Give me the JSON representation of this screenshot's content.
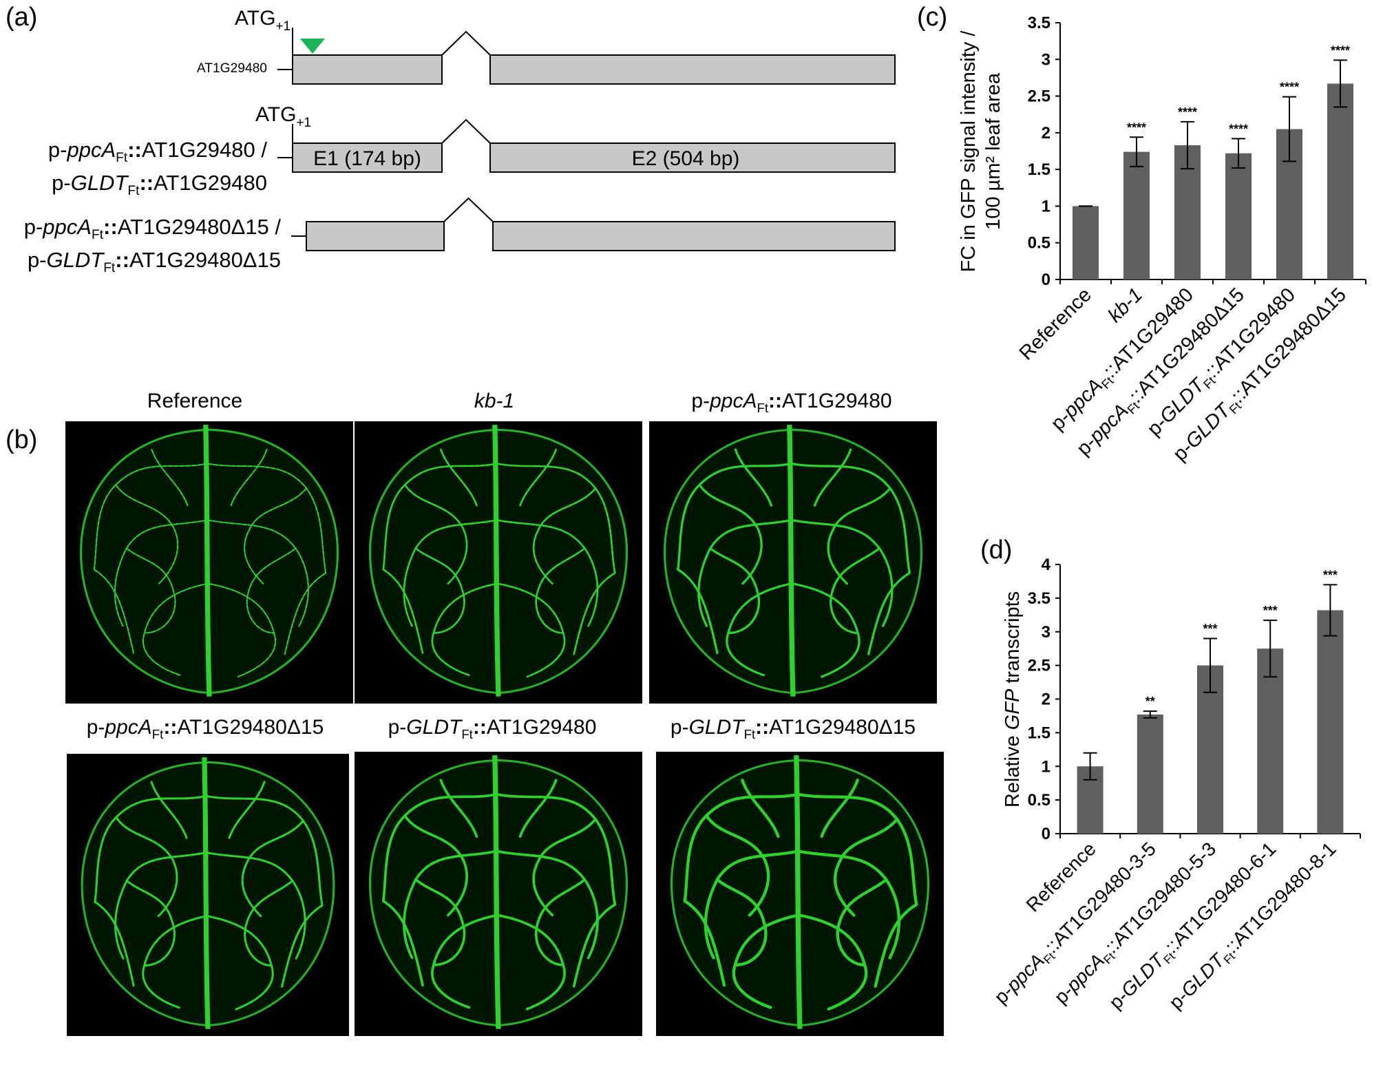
{
  "panel_a": {
    "letter": "(a)",
    "atg_main": "ATG",
    "atg_sub": "+1",
    "rows": [
      {
        "label_lines": [
          [
            "",
            "",
            "AT1G29480",
            "",
            ""
          ]
        ],
        "exon1": "",
        "exon2": "",
        "show_atg": true,
        "show_triangle": true
      },
      {
        "label_lines": [
          [
            "p-",
            "ppcA",
            "Ft",
            "::",
            "AT1G29480 /"
          ],
          [
            "p-",
            "GLDT",
            "Ft",
            "::",
            "AT1G29480"
          ]
        ],
        "exon1": "E1 (174 bp)",
        "exon2": "E2 (504 bp)",
        "show_atg": true,
        "show_triangle": false
      },
      {
        "label_lines": [
          [
            "p-",
            "ppcA",
            "Ft",
            "::",
            "AT1G29480Δ15 /"
          ],
          [
            "p-",
            "GLDT",
            "Ft",
            "::",
            "AT1G29480Δ15"
          ]
        ],
        "exon1": "",
        "exon2": "",
        "show_atg": false,
        "show_triangle": false
      }
    ]
  },
  "panel_b": {
    "letter": "(b)",
    "images": [
      {
        "prefix": "",
        "italic": "",
        "sub": "",
        "sep": "",
        "rest": "Reference"
      },
      {
        "prefix": "",
        "italic": "kb-1",
        "sub": "",
        "sep": "",
        "rest": ""
      },
      {
        "prefix": "p-",
        "italic": "ppcA",
        "sub": "Ft",
        "sep": "::",
        "rest": "AT1G29480"
      },
      {
        "prefix": "p-",
        "italic": "ppcA",
        "sub": "Ft",
        "sep": "::",
        "rest": "AT1G29480Δ15"
      },
      {
        "prefix": "p-",
        "italic": "GLDT",
        "sub": "Ft",
        "sep": "::",
        "rest": "AT1G29480"
      },
      {
        "prefix": "p-",
        "italic": "GLDT",
        "sub": "Ft",
        "sep": "::",
        "rest": "AT1G29480Δ15"
      }
    ]
  },
  "panel_c": {
    "letter": "(c)"
  },
  "panel_d": {
    "letter": "(d)"
  },
  "colors": {
    "bar": "#5f5f5f",
    "leaf_vein": "#2fd12f",
    "triangle": "#19b35a",
    "exon": "#c8c8c8"
  },
  "chart_data": [
    {
      "type": "bar",
      "ylabel_lines": [
        "FC in GFP signal intensity /",
        "100 µm² leaf area"
      ],
      "ylim": [
        0,
        3.5
      ],
      "yticks": [
        "0",
        "0.5",
        "1",
        "1.5",
        "2",
        "2.5",
        "3",
        "3.5"
      ],
      "categories": [
        {
          "prefix": "",
          "italic": "",
          "sub": "",
          "rest": "Reference"
        },
        {
          "prefix": "",
          "italic": "kb-1",
          "sub": "",
          "rest": ""
        },
        {
          "prefix": "p-",
          "italic": "ppcA",
          "sub": "Ft",
          "rest": "::AT1G29480"
        },
        {
          "prefix": "p-",
          "italic": "ppcA",
          "sub": "Ft",
          "rest": "::AT1G29480Δ15"
        },
        {
          "prefix": "p-",
          "italic": "GLDT",
          "sub": "Ft",
          "rest": "::AT1G29480"
        },
        {
          "prefix": "p-",
          "italic": "GLDT",
          "sub": "Ft",
          "rest": "::AT1G29480Δ15"
        }
      ],
      "values": [
        1.0,
        1.74,
        1.83,
        1.72,
        2.05,
        2.67
      ],
      "errors": [
        0.0,
        0.2,
        0.32,
        0.2,
        0.44,
        0.32
      ],
      "annotations": [
        "",
        "****",
        "****",
        "****",
        "****",
        "****"
      ]
    },
    {
      "type": "bar",
      "ylabel_parts": [
        "Relative ",
        "GFP",
        " transcripts"
      ],
      "ylim": [
        0,
        4
      ],
      "yticks": [
        "0",
        "0.5",
        "1",
        "1.5",
        "2",
        "2.5",
        "3",
        "3.5",
        "4"
      ],
      "categories": [
        {
          "prefix": "",
          "italic": "",
          "sub": "",
          "rest": "Reference"
        },
        {
          "prefix": "p-",
          "italic": "ppcA",
          "sub": "Ft",
          "rest": "::AT1G29480-3-5"
        },
        {
          "prefix": "p-",
          "italic": "ppcA",
          "sub": "Ft",
          "rest": "::AT1G29480-5-3"
        },
        {
          "prefix": "p-",
          "italic": "GLDT",
          "sub": "Ft",
          "rest": "::AT1G29480-6-1"
        },
        {
          "prefix": "p-",
          "italic": "GLDT",
          "sub": "Ft",
          "rest": "::AT1G29480-8-1"
        }
      ],
      "values": [
        1.0,
        1.77,
        2.5,
        2.75,
        3.32
      ],
      "errors": [
        0.2,
        0.05,
        0.4,
        0.42,
        0.38
      ],
      "annotations": [
        "",
        "**",
        "***",
        "***",
        "***"
      ]
    }
  ]
}
